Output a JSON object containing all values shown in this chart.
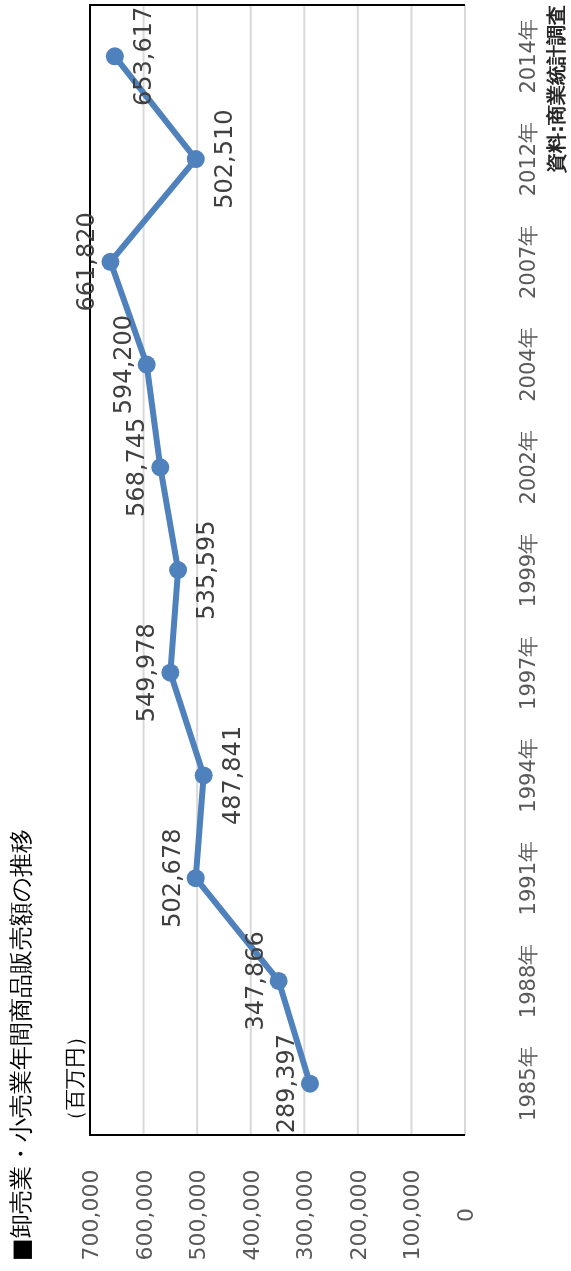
{
  "chart_data": {
    "type": "line",
    "orientation": "horizontal",
    "title": "■卸売業・小売業年間商品販売額の推移",
    "annotations": [
      "（百万円）",
      "資料:商業統計調査"
    ],
    "categories": [
      "2014年",
      "2012年",
      "2007年",
      "2004年",
      "2002年",
      "1999年",
      "1997年",
      "1994年",
      "1991年",
      "1988年",
      "1985年"
    ],
    "series": [
      {
        "color": "#4f81bd",
        "values": [
          653617,
          502510,
          661820,
          594200,
          568745,
          535595,
          549978,
          487841,
          502678,
          347866,
          289397
        ],
        "value_labels": [
          "653,617",
          "502,510",
          "661,820",
          "594,200",
          "568,745",
          "535,595",
          "549,978",
          "487,841",
          "502,678",
          "347,866",
          "289,397"
        ]
      }
    ],
    "xlim": [
      700000,
      0
    ],
    "xticks": [
      0,
      {
        "value": 100000,
        "label": "100,000"
      },
      {
        "value": 200000,
        "label": "200,000"
      },
      {
        "value": 300000,
        "label": "300,000"
      },
      {
        "value": 400000,
        "label": "400,000"
      },
      {
        "value": 500000,
        "label": "500,000"
      },
      {
        "value": 600000,
        "label": "600,000"
      },
      {
        "value": 700000,
        "label": "700,000"
      }
    ],
    "grid": "x",
    "marker": "circle",
    "line_style": "solid"
  }
}
